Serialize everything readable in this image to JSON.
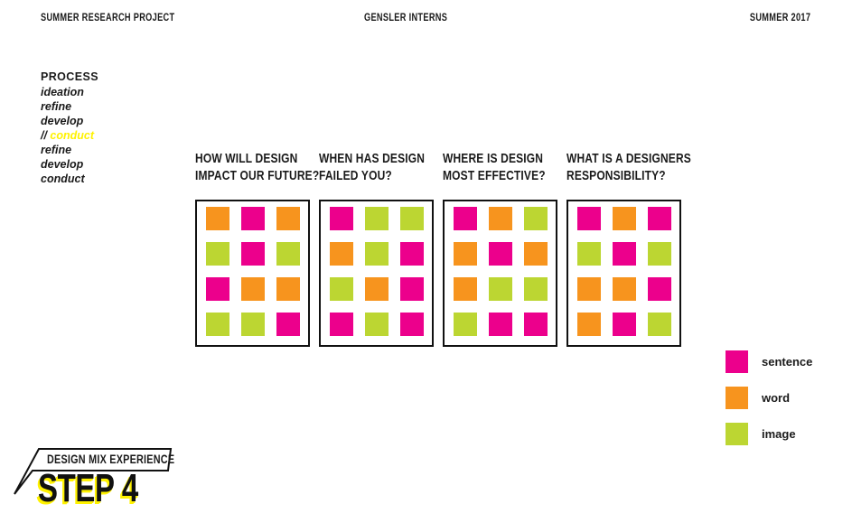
{
  "header": {
    "left": "SUMMER RESEARCH PROJECT",
    "center": "GENSLER INTERNS",
    "right": "SUMMER 2017"
  },
  "process": {
    "title": "PROCESS",
    "items": [
      {
        "text": "ideation",
        "highlight": false
      },
      {
        "text": "refine",
        "highlight": false
      },
      {
        "text": "develop",
        "highlight": false
      },
      {
        "prefix": "// ",
        "text": "conduct",
        "highlight": true
      },
      {
        "text": "refine",
        "highlight": false
      },
      {
        "text": "develop",
        "highlight": false
      },
      {
        "text": "conduct",
        "highlight": false
      }
    ]
  },
  "colors": {
    "sentence": "#EC008C",
    "word": "#F7941E",
    "image": "#BCD632",
    "highlight": "#FFF200",
    "ink": "#111111"
  },
  "panels": [
    {
      "question_lines": [
        "HOW WILL DESIGN",
        "IMPACT OUR FUTURE?"
      ],
      "grid": [
        [
          "word",
          "sentence",
          "word"
        ],
        [
          "image",
          "sentence",
          "image"
        ],
        [
          "sentence",
          "word",
          "word"
        ],
        [
          "image",
          "image",
          "sentence"
        ]
      ]
    },
    {
      "question_lines": [
        "WHEN HAS DESIGN",
        "FAILED YOU?"
      ],
      "grid": [
        [
          "sentence",
          "image",
          "image"
        ],
        [
          "word",
          "image",
          "sentence"
        ],
        [
          "image",
          "word",
          "sentence"
        ],
        [
          "sentence",
          "image",
          "sentence"
        ]
      ]
    },
    {
      "question_lines": [
        "WHERE IS DESIGN",
        "MOST EFFECTIVE?"
      ],
      "grid": [
        [
          "sentence",
          "word",
          "image"
        ],
        [
          "word",
          "sentence",
          "word"
        ],
        [
          "word",
          "image",
          "image"
        ],
        [
          "image",
          "sentence",
          "sentence"
        ]
      ]
    },
    {
      "question_lines": [
        "WHAT IS A DESIGNERS",
        "RESPONSIBILITY?"
      ],
      "grid": [
        [
          "sentence",
          "word",
          "sentence"
        ],
        [
          "image",
          "sentence",
          "image"
        ],
        [
          "word",
          "word",
          "sentence"
        ],
        [
          "word",
          "sentence",
          "image"
        ]
      ]
    }
  ],
  "legend": {
    "items": [
      {
        "type": "sentence",
        "label": "sentence"
      },
      {
        "type": "word",
        "label": "word"
      },
      {
        "type": "image",
        "label": "image"
      }
    ]
  },
  "footer": {
    "tag": "DESIGN MIX EXPERIENCE",
    "step": "STEP 4"
  }
}
